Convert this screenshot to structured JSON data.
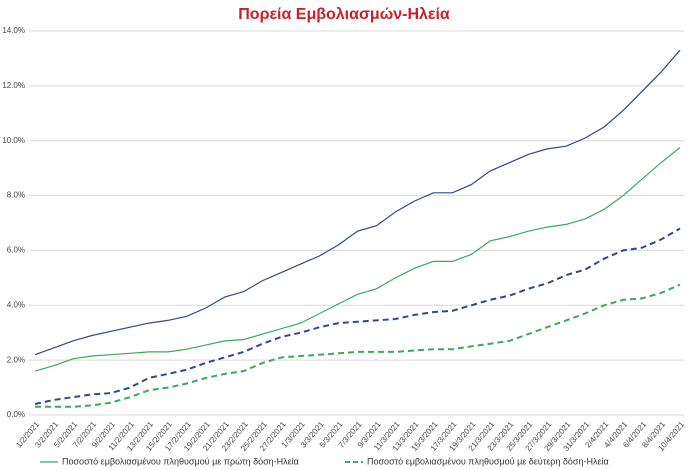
{
  "chart_data": {
    "type": "line",
    "title": "Πορεία Εμβολιασμών-Ηλεία",
    "categories": [
      "1/2/2021",
      "3/2/2021",
      "5/2/2021",
      "7/2/2021",
      "9/2/2021",
      "11/2/2021",
      "13/2/2021",
      "15/2/2021",
      "17/2/2021",
      "19/2/2021",
      "21/2/2021",
      "23/2/2021",
      "25/2/2021",
      "27/2/2021",
      "1/3/2021",
      "3/3/2021",
      "5/3/2021",
      "7/3/2021",
      "9/3/2021",
      "11/3/2021",
      "13/3/2021",
      "15/3/2021",
      "17/3/2021",
      "19/3/2021",
      "21/3/2021",
      "23/3/2021",
      "25/3/2021",
      "27/3/2021",
      "29/3/2021",
      "31/3/2021",
      "2/4/2021",
      "4/4/2021",
      "6/4/2021",
      "8/4/2021",
      "10/4/2021"
    ],
    "series": [
      {
        "color": "#2e4a87",
        "dash": false,
        "values": [
          2.2,
          2.45,
          2.7,
          2.9,
          3.05,
          3.2,
          3.35,
          3.45,
          3.6,
          3.9,
          4.3,
          4.5,
          4.9,
          5.2,
          5.5,
          5.8,
          6.2,
          6.7,
          6.9,
          7.4,
          7.8,
          8.1,
          8.1,
          8.4,
          8.9,
          9.2,
          9.5,
          9.7,
          9.8,
          10.1,
          10.5,
          11.1,
          11.8,
          12.5,
          13.3
        ]
      },
      {
        "name": "Ποσοστό εμβολιασμένου πληθυσμού με πρώτη δόση-Ηλεία",
        "color": "#3aaa5c",
        "dash": false,
        "values": [
          1.6,
          1.8,
          2.05,
          2.15,
          2.2,
          2.25,
          2.3,
          2.3,
          2.4,
          2.55,
          2.7,
          2.75,
          2.95,
          3.15,
          3.35,
          3.7,
          4.05,
          4.4,
          4.6,
          5.0,
          5.35,
          5.6,
          5.6,
          5.85,
          6.35,
          6.5,
          6.7,
          6.85,
          6.95,
          7.15,
          7.5,
          8.0,
          8.6,
          9.2,
          9.75
        ]
      },
      {
        "color": "#2e4a87",
        "dash": true,
        "values": [
          0.4,
          0.55,
          0.65,
          0.75,
          0.8,
          1.0,
          1.35,
          1.5,
          1.65,
          1.9,
          2.1,
          2.3,
          2.6,
          2.85,
          3.0,
          3.2,
          3.35,
          3.4,
          3.45,
          3.5,
          3.65,
          3.75,
          3.8,
          4.0,
          4.2,
          4.35,
          4.6,
          4.8,
          5.1,
          5.3,
          5.7,
          6.0,
          6.1,
          6.4,
          6.8
        ]
      },
      {
        "name": "Ποσοστό εμβολιασμένου πληθυσμού με δεύτερη δόση-Ηλεία",
        "color": "#3aaa5c",
        "dash": true,
        "values": [
          0.3,
          0.3,
          0.3,
          0.35,
          0.45,
          0.65,
          0.9,
          1.0,
          1.15,
          1.35,
          1.5,
          1.6,
          1.9,
          2.1,
          2.15,
          2.2,
          2.25,
          2.3,
          2.3,
          2.3,
          2.35,
          2.4,
          2.4,
          2.5,
          2.6,
          2.7,
          2.95,
          3.2,
          3.45,
          3.7,
          4.0,
          4.2,
          4.25,
          4.45,
          4.75
        ]
      }
    ],
    "ylim": [
      0,
      14
    ],
    "yticks": [
      {
        "value": 0,
        "label": "0.0%"
      },
      {
        "value": 2,
        "label": "2.0%"
      },
      {
        "value": 4,
        "label": "4.0%"
      },
      {
        "value": 6,
        "label": "6.0%"
      },
      {
        "value": 8,
        "label": "8.0%"
      },
      {
        "value": 10,
        "label": "10.0%"
      },
      {
        "value": 12,
        "label": "12.0%"
      },
      {
        "value": 14,
        "label": "14.0%"
      }
    ],
    "grid": true
  }
}
